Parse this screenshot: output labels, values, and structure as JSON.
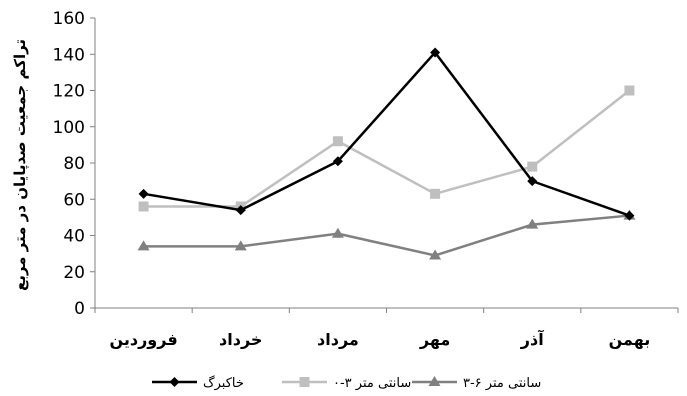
{
  "chart_data": {
    "type": "line",
    "categories": [
      "فروردین",
      "خرداد",
      "مرداد",
      "مهر",
      "آذر",
      "بهمن"
    ],
    "ylabel": "تراکم جمعیت صدپایان در متر مربع",
    "xlabel": "",
    "ylim": [
      0,
      160
    ],
    "yticks": [
      0,
      20,
      40,
      60,
      80,
      100,
      120,
      140,
      160
    ],
    "grid": false,
    "legend_position": "bottom",
    "series": [
      {
        "name": "خاکبرگ",
        "values": [
          63,
          54,
          81,
          141,
          70,
          51
        ],
        "color": "#000000",
        "marker": "diamond"
      },
      {
        "name": "۰-۳ سانتی متر",
        "values": [
          56,
          56,
          92,
          63,
          78,
          120
        ],
        "color": "#bfbfbf",
        "marker": "square"
      },
      {
        "name": "۳-۶ سانتی متر",
        "values": [
          34,
          34,
          41,
          29,
          46,
          51
        ],
        "color": "#808080",
        "marker": "triangle"
      }
    ]
  }
}
